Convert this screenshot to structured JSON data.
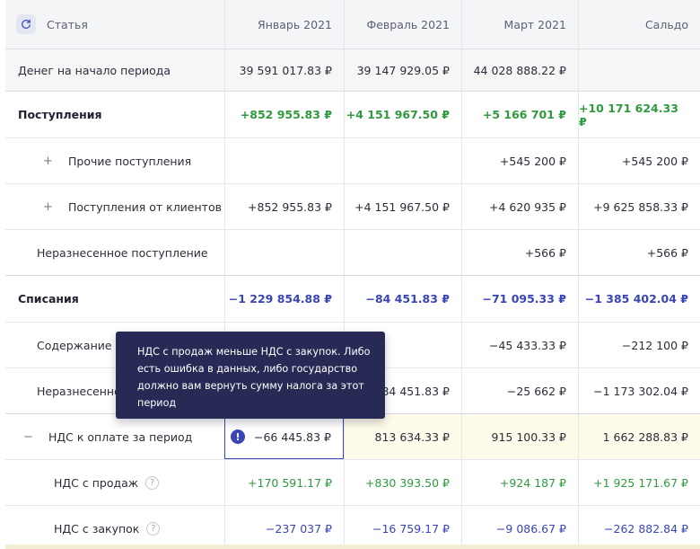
{
  "header": {
    "article_label": "Статья",
    "columns": [
      "Январь 2021",
      "Февраль 2021",
      "Март 2021",
      "Сальдо"
    ]
  },
  "start_balance": {
    "label": "Денег на начало периода",
    "values": [
      "39 591 017.83 ₽",
      "39 147 929.05 ₽",
      "44 028 888.22 ₽",
      ""
    ]
  },
  "income": {
    "label": "Поступления",
    "values": [
      "+852 955.83 ₽",
      "+4 151 967.50 ₽",
      "+5 166 701 ₽",
      "+10 171 624.33 ₽"
    ],
    "rows": [
      {
        "expander": "+",
        "label": "Прочие поступления",
        "values": [
          "",
          "",
          "+545 200 ₽",
          "+545 200 ₽"
        ]
      },
      {
        "expander": "+",
        "label": "Поступления от клиентов",
        "values": [
          "+852 955.83 ₽",
          "+4 151 967.50 ₽",
          "+4 620 935 ₽",
          "+9 625 858.33 ₽"
        ]
      },
      {
        "expander": "",
        "label": "Неразнесенное поступление",
        "values": [
          "",
          "",
          "+566 ₽",
          "+566 ₽"
        ]
      }
    ]
  },
  "expenses": {
    "label": "Списания",
    "values": [
      "−1 229 854.88 ₽",
      "−84 451.83 ₽",
      "−71 095.33 ₽",
      "−1 385 402.04 ₽"
    ],
    "rows": [
      {
        "label": "Содержание с",
        "values": [
          "",
          "",
          "−45 433.33 ₽",
          "−212 100 ₽"
        ]
      },
      {
        "label": "Неразнесенно",
        "values": [
          "",
          "−84 451.83 ₽",
          "−25 662 ₽",
          "−1 173 302.04 ₽"
        ]
      }
    ]
  },
  "vat": {
    "expander": "−",
    "label": "НДС к оплате за период",
    "warning_glyph": "!",
    "values": [
      "−66 445.83 ₽",
      "813 634.33 ₽",
      "915 100.33 ₽",
      "1 662 288.83 ₽"
    ],
    "rows": [
      {
        "label": "НДС с продаж",
        "help": "?",
        "values": [
          "+170 591.17 ₽",
          "+830 393.50 ₽",
          "+924 187 ₽",
          "+1 925 171.67 ₽"
        ]
      },
      {
        "label": "НДС с закупок",
        "help": "?",
        "values": [
          "−237 037 ₽",
          "−16 759.17 ₽",
          "−9 086.67 ₽",
          "−262 882.84 ₽"
        ]
      }
    ]
  },
  "tooltip": {
    "text": "НДС с продаж меньше НДС с закупок. Либо есть ошибка в данных, либо государство должно вам вернуть сумму налога за этот период"
  },
  "colors": {
    "positive": "#2f9a3f",
    "negative": "#3a45b5",
    "tooltip_bg": "#262a55",
    "highlight_bg": "#fffbea"
  },
  "icons": {
    "refresh": "refresh-icon",
    "warning": "warning-icon",
    "help": "help-icon"
  }
}
